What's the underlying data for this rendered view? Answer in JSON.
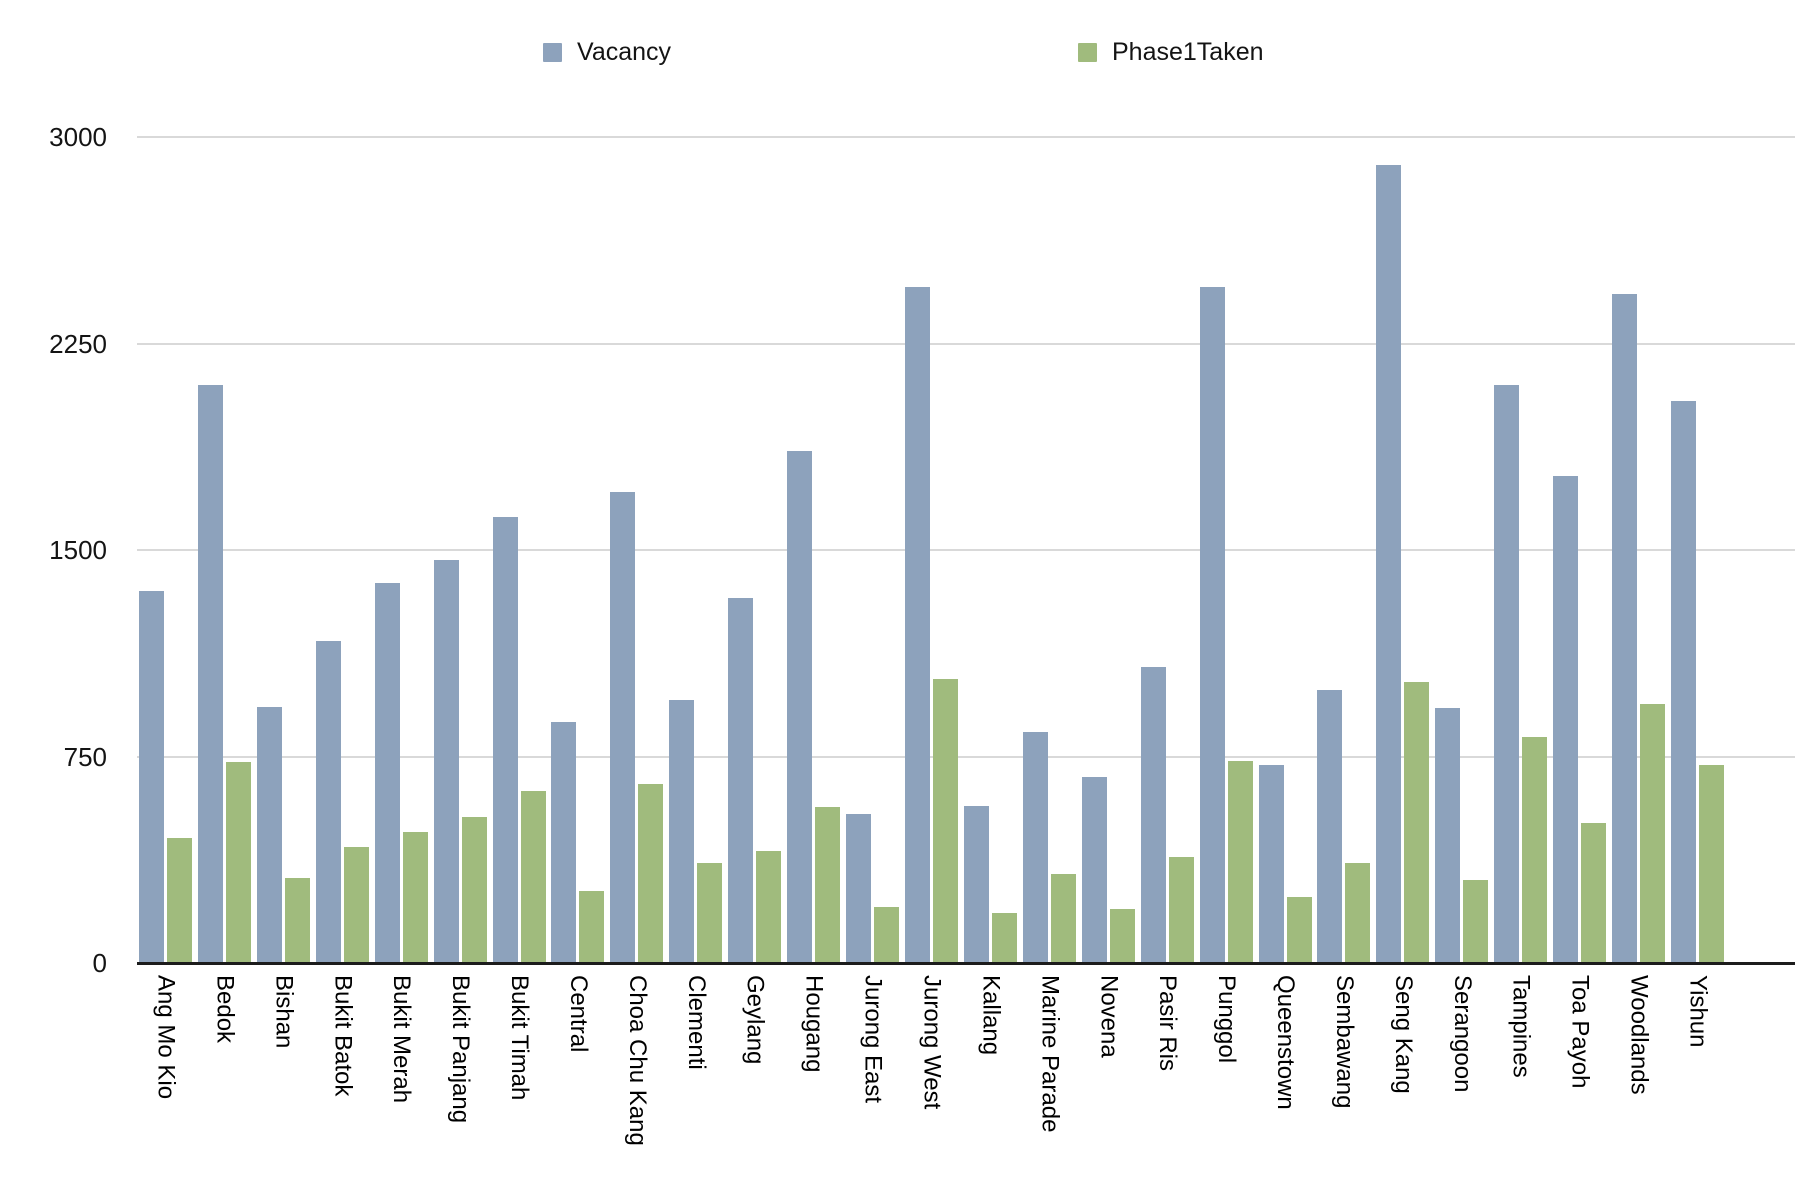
{
  "chart_data": {
    "type": "bar",
    "title": "",
    "xlabel": "",
    "ylabel": "",
    "categories": [
      "Ang Mo Kio",
      "Bedok",
      "Bishan",
      "Bukit Batok",
      "Bukit Merah",
      "Bukit Panjang",
      "Bukit Timah",
      "Central",
      "Choa Chu Kang",
      "Clementi",
      "Geylang",
      "Hougang",
      "Jurong East",
      "Jurong West",
      "Kallang",
      "Marine Parade",
      "Novena",
      "Pasir Ris",
      "Punggol",
      "Queenstown",
      "Sembawang",
      "Seng Kang",
      "Serangoon",
      "Tampines",
      "Toa Payoh",
      "Woodlands",
      "Yishun"
    ],
    "series": [
      {
        "name": "Vacancy",
        "color": "#8da2bc",
        "values": [
          1350,
          2100,
          930,
          1170,
          1380,
          1465,
          1620,
          875,
          1710,
          955,
          1325,
          1860,
          540,
          2455,
          570,
          840,
          675,
          1075,
          2455,
          720,
          990,
          2900,
          925,
          2100,
          1770,
          2430,
          2040
        ]
      },
      {
        "name": "Phase1Taken",
        "color": "#a0bb7d",
        "values": [
          455,
          730,
          310,
          420,
          475,
          530,
          625,
          260,
          650,
          365,
          405,
          565,
          205,
          1030,
          180,
          325,
          195,
          385,
          735,
          240,
          365,
          1020,
          300,
          820,
          510,
          940,
          720
        ]
      }
    ],
    "ylim": [
      0,
      3000
    ],
    "yticks": [
      0,
      750,
      1500,
      2250,
      3000
    ],
    "grid": true,
    "legend_position": "top"
  }
}
